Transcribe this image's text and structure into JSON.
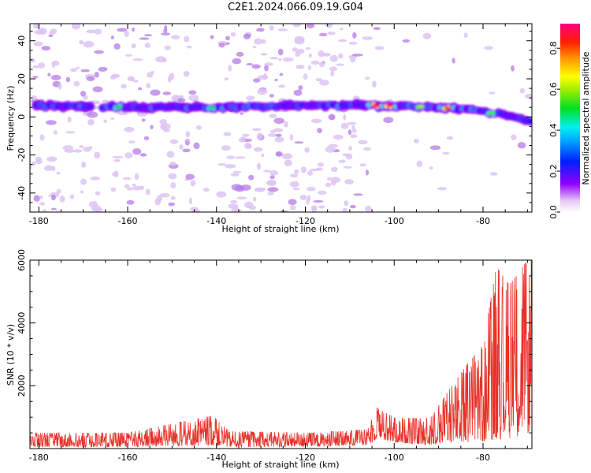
{
  "figure": {
    "title": "C2E1.2024.066.09.19.G04"
  },
  "colors": {
    "snr_line": "#e8312a",
    "axis": "#000000",
    "background": "#ffffff"
  },
  "chart_data": [
    {
      "type": "heatmap",
      "xlabel": "Height of straight line (km)",
      "ylabel": "Frequency (Hz)",
      "xlim": [
        -182,
        -69
      ],
      "ylim": [
        -50,
        49
      ],
      "xticks": [
        -180,
        -160,
        -140,
        -120,
        -100,
        -80
      ],
      "yticks": [
        -40,
        -20,
        0,
        20,
        40
      ],
      "colorbar": {
        "label": "Normalized spectral amplitude",
        "range": [
          0,
          0.92
        ],
        "ticks": [
          0.0,
          0.2,
          0.4,
          0.6,
          0.8
        ],
        "colormap": "rainbow (white to violet, blue, cyan, green, yellow, orange, red, magenta)"
      },
      "description_data": {
        "signal_band": {
          "frequency_vs_height": [
            {
              "x": -182,
              "y": 6
            },
            {
              "x": -160,
              "y": 5
            },
            {
              "x": -140,
              "y": 5
            },
            {
              "x": -120,
              "y": 6
            },
            {
              "x": -100,
              "y": 6
            },
            {
              "x": -90,
              "y": 5
            },
            {
              "x": -80,
              "y": 3
            },
            {
              "x": -75,
              "y": 1
            },
            {
              "x": -70,
              "y": -2
            }
          ],
          "peak_amplitudes": [
            {
              "x": -162,
              "value": 0.5
            },
            {
              "x": -141,
              "value": 0.5
            },
            {
              "x": -104,
              "value": 0.9
            },
            {
              "x": -101,
              "value": 0.85
            },
            {
              "x": -94,
              "value": 0.6
            },
            {
              "x": -88,
              "value": 0.8
            },
            {
              "x": -78,
              "value": 0.55
            }
          ]
        },
        "noise_level": 0.1
      }
    },
    {
      "type": "line",
      "xlabel": "Height of straight line (km)",
      "ylabel": "SNR (10 * v/v)",
      "xlim": [
        -182,
        -69
      ],
      "ylim": [
        0,
        6000
      ],
      "xticks": [
        -180,
        -160,
        -140,
        -120,
        -100,
        -80
      ],
      "yticks": [
        2000,
        4000,
        6000
      ],
      "series": [
        {
          "envelope": [
            {
              "x": -182,
              "y_low": 50,
              "y_high": 500
            },
            {
              "x": -160,
              "y_low": 50,
              "y_high": 500
            },
            {
              "x": -141,
              "y_low": 100,
              "y_high": 1050
            },
            {
              "x": -137,
              "y_low": 50,
              "y_high": 550
            },
            {
              "x": -120,
              "y_low": 50,
              "y_high": 500
            },
            {
              "x": -106,
              "y_low": 100,
              "y_high": 600
            },
            {
              "x": -104,
              "y_low": 300,
              "y_high": 1300
            },
            {
              "x": -100,
              "y_low": 200,
              "y_high": 1000
            },
            {
              "x": -92,
              "y_low": 100,
              "y_high": 950
            },
            {
              "x": -88,
              "y_low": 200,
              "y_high": 1800
            },
            {
              "x": -84,
              "y_low": 200,
              "y_high": 2600
            },
            {
              "x": -80,
              "y_low": 200,
              "y_high": 3300
            },
            {
              "x": -77,
              "y_low": 300,
              "y_high": 5800
            },
            {
              "x": -74,
              "y_low": 300,
              "y_high": 5200
            },
            {
              "x": -70,
              "y_low": 500,
              "y_high": 6000
            }
          ]
        }
      ]
    }
  ]
}
